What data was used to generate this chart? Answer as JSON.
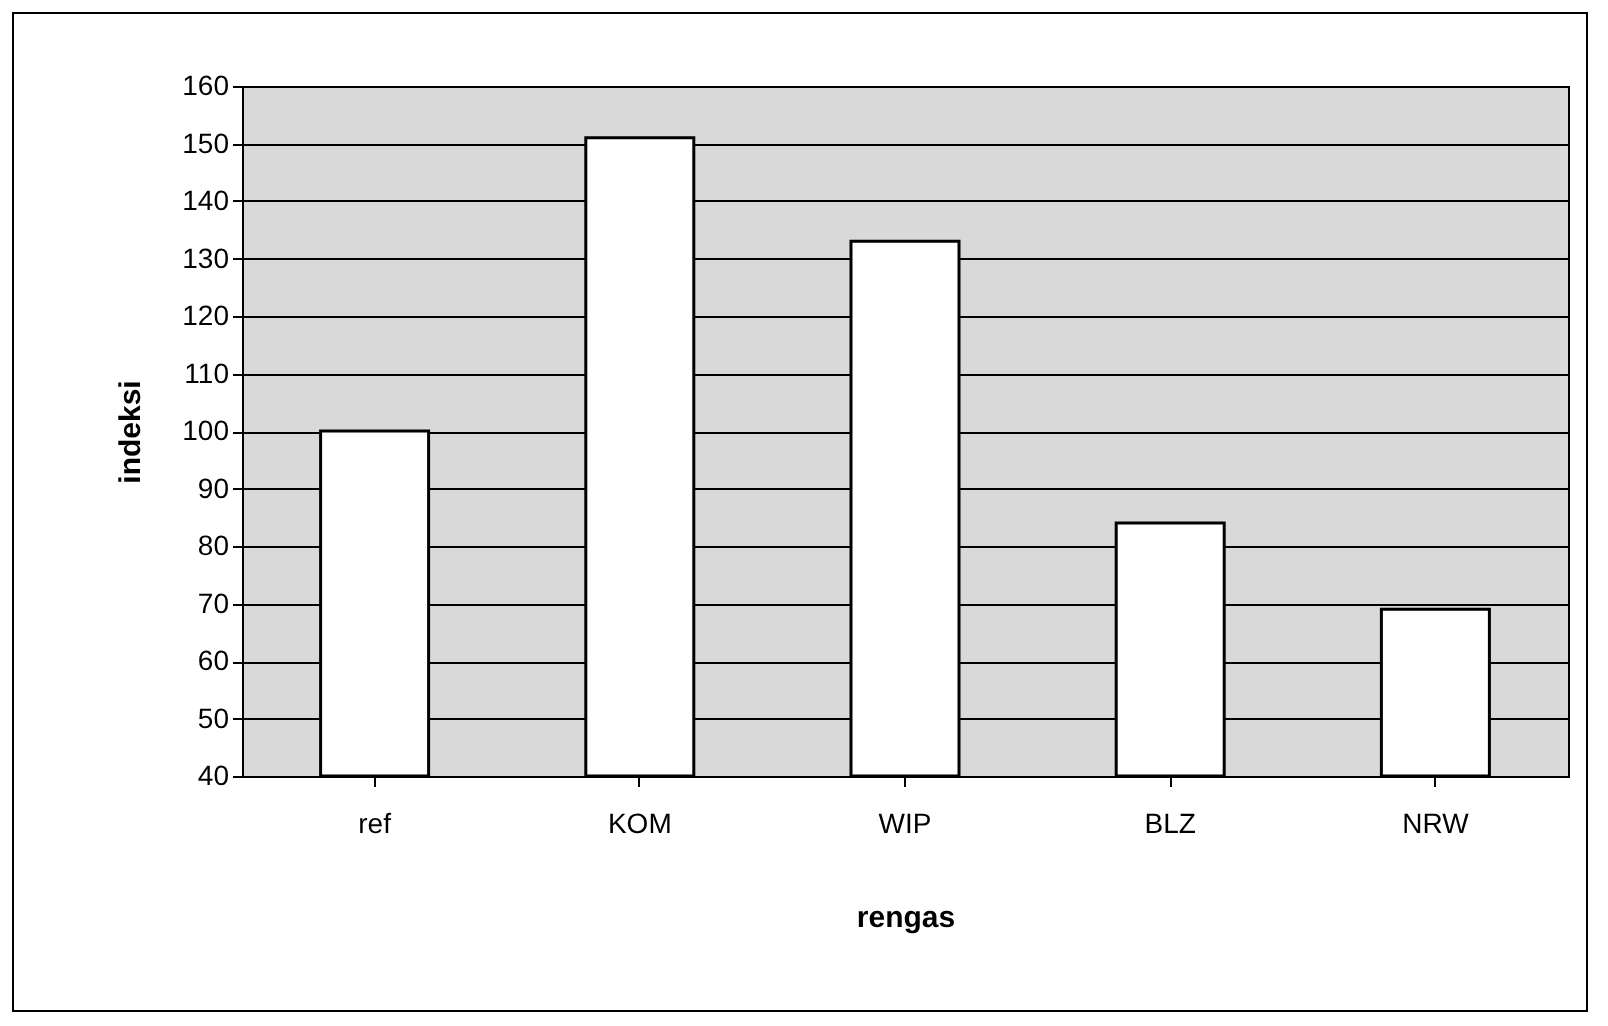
{
  "chart_data": {
    "type": "bar",
    "xlabel": "rengas",
    "ylabel": "indeksi",
    "categories": [
      "ref",
      "KOM",
      "WIP",
      "BLZ",
      "NRW"
    ],
    "values": [
      100,
      151,
      133,
      84,
      69
    ],
    "color": "#ffffff",
    "ylim": [
      40,
      160
    ],
    "yticks": [
      40,
      50,
      60,
      70,
      80,
      90,
      100,
      110,
      120,
      130,
      140,
      150,
      160
    ],
    "grid": "y"
  }
}
